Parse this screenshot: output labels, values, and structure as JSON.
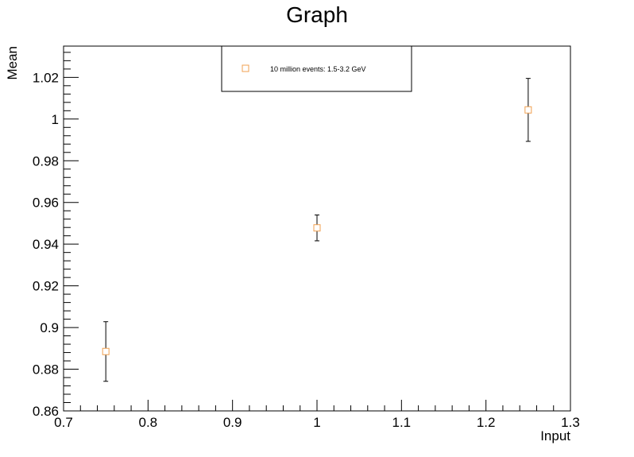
{
  "chart_data": {
    "type": "scatter",
    "title": "Graph",
    "xlabel": "Input",
    "ylabel": "Mean",
    "xlim": [
      0.7,
      1.3
    ],
    "ylim": [
      0.86,
      1.035
    ],
    "x_ticks": [
      "0.7",
      "0.8",
      "0.9",
      "1",
      "1.1",
      "1.2",
      "1.3"
    ],
    "y_ticks": [
      "0.86",
      "0.88",
      "0.9",
      "0.92",
      "0.94",
      "0.96",
      "0.98",
      "1",
      "1.02"
    ],
    "series": [
      {
        "name": "10 million events: 1.5-3.2 GeV",
        "color": "#f0a050",
        "marker": "open-square",
        "points": [
          {
            "x": 0.75,
            "y": 0.8885,
            "err": 0.0143
          },
          {
            "x": 1.0,
            "y": 0.9478,
            "err": 0.0062
          },
          {
            "x": 1.25,
            "y": 1.0044,
            "err": 0.0151
          }
        ]
      }
    ],
    "legend_position": "top-center",
    "grid": false
  }
}
